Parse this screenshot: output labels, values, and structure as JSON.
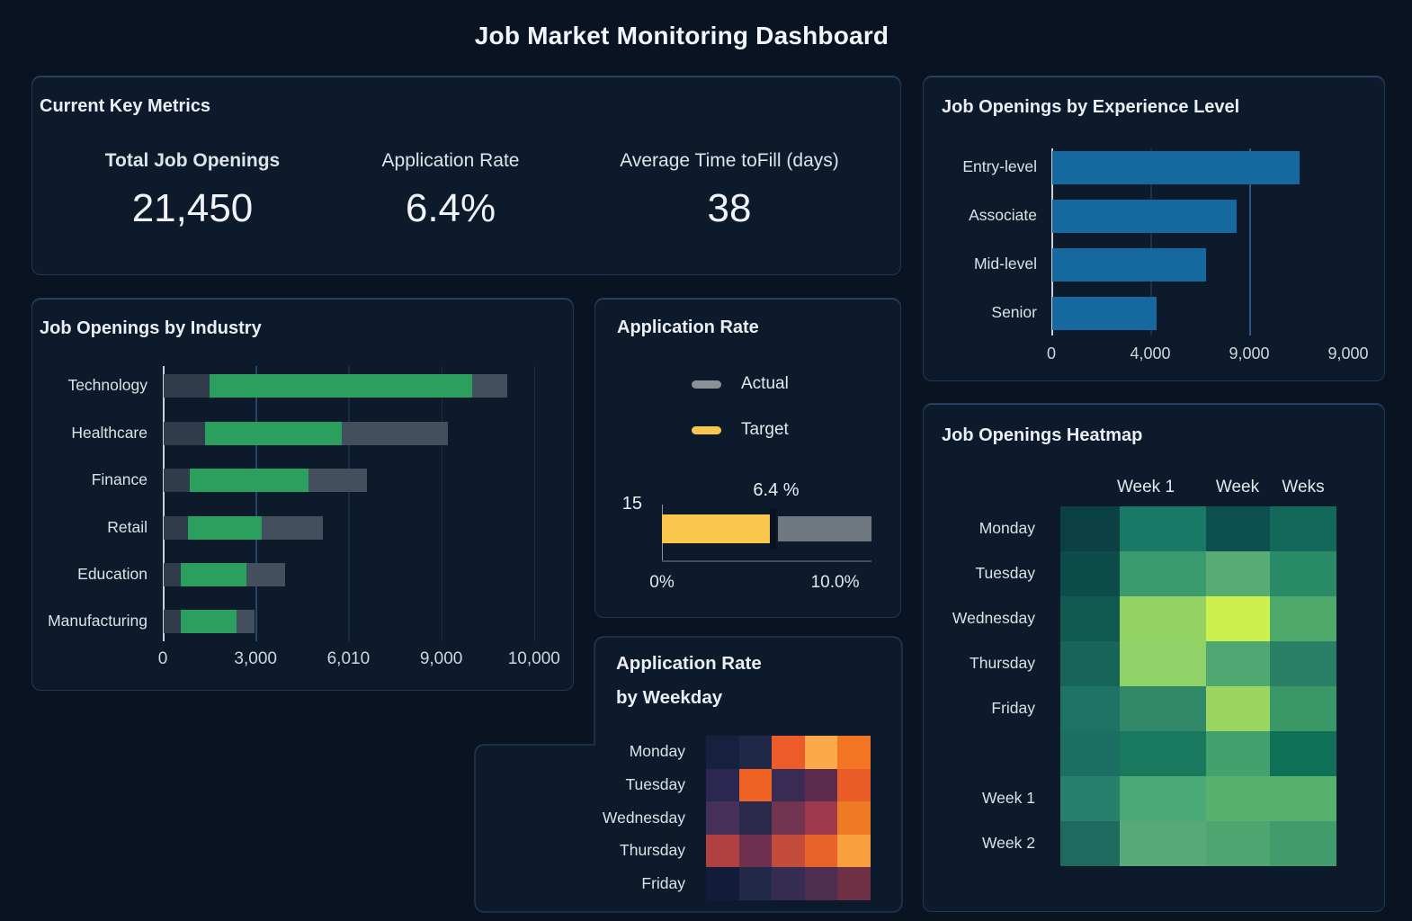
{
  "page": {
    "title": "Job Market Monitoring Dashboard"
  },
  "colors": {
    "page_bg": "#0a1322",
    "panel_bg": "#0d1a2b",
    "panel_border": "#223754",
    "blue_bar": "#16699e",
    "green_bar": "#2b9f5d",
    "target_yellow": "#f8c74c",
    "actual_gray": "#6f7880"
  },
  "key_metrics": {
    "title": "Current Key Metrics",
    "metrics": [
      {
        "label": "Total Job Openings",
        "value": "21,450"
      },
      {
        "label": "Application Rate",
        "value": "6.4%"
      },
      {
        "label": "Average Time toFill (days)",
        "value": "38"
      }
    ]
  },
  "chart_data": [
    {
      "id": "experience",
      "type": "bar",
      "orientation": "horizontal",
      "title": "Job Openings by Experience Level",
      "categories": [
        "Entry-level",
        "Associate",
        "Mid-level",
        "Senior"
      ],
      "values": [
        9000,
        6700,
        5600,
        3800
      ],
      "xticks": [
        "0",
        "4,000",
        "9,000",
        "9,000"
      ],
      "xlim": [
        0,
        11500
      ],
      "bar_color": "#16699e",
      "grid": {
        "vertical_ticks": [
          1,
          2
        ]
      },
      "legend_position": "none"
    },
    {
      "id": "industry",
      "type": "bar",
      "subtype": "range",
      "orientation": "horizontal",
      "title": "Job Openings by Industry",
      "categories": [
        "Technology",
        "Healthcare",
        "Finance",
        "Retail",
        "Education",
        "Manufacturing"
      ],
      "series": [
        {
          "name": "total-track",
          "values": [
            10950,
            9060,
            6500,
            5090,
            3890,
            2915
          ],
          "color_before": "#303c4b",
          "color_after": "#434f5d"
        },
        {
          "name": "highlight-range",
          "starts": [
            1500,
            1340,
            860,
            800,
            570,
            570
          ],
          "ends": [
            9850,
            5700,
            4630,
            3140,
            2660,
            2340
          ],
          "color": "#2b9f5d"
        }
      ],
      "xticks": [
        "0",
        "3,000",
        "6,010",
        "9,000",
        "10,000"
      ],
      "xlim": [
        0,
        12300
      ],
      "grid": {
        "vertical_ticks": [
          1,
          2,
          3,
          4
        ],
        "highlight_tick": 1
      },
      "legend_position": "none"
    },
    {
      "id": "bullet",
      "type": "bar",
      "subtype": "bullet",
      "title": "Application Rate",
      "legend": [
        {
          "label": "Actual",
          "color": "#8a9096"
        },
        {
          "label": "Target",
          "color": "#f8c74c"
        }
      ],
      "legend_position": "top",
      "left_label": "15",
      "value_label": "6.4 %",
      "target": 6.4,
      "actual_end": 12.1,
      "xlim": [
        0,
        12.1
      ],
      "xticks": [
        {
          "label": "0%",
          "value": 0
        },
        {
          "label": "10.0%",
          "value": 10
        }
      ],
      "target_color": "#f8c74c",
      "actual_color": "#6f7880",
      "marker_color": "#0a1220"
    },
    {
      "id": "weekday_heatmap",
      "type": "heatmap",
      "title_lines": [
        "Application Rate",
        "by Weekday"
      ],
      "rows": [
        "Monday",
        "Tuesday",
        "Wednesday",
        "Thursday",
        "Friday"
      ],
      "columns": [
        "",
        "",
        "",
        "",
        ""
      ],
      "values": [
        [
          0.05,
          0.1,
          0.75,
          0.92,
          0.85
        ],
        [
          0.15,
          0.8,
          0.22,
          0.32,
          0.74
        ],
        [
          0.25,
          0.14,
          0.4,
          0.55,
          0.82
        ],
        [
          0.6,
          0.38,
          0.65,
          0.78,
          0.9
        ],
        [
          0.04,
          0.12,
          0.2,
          0.3,
          0.42
        ]
      ],
      "value_scale": "relative intensity 0-1 (no colorbar shown)",
      "cell_colors": [
        [
          "#16203f",
          "#1f2847",
          "#ee5b2b",
          "#fbaa4b",
          "#f37423"
        ],
        [
          "#2b2750",
          "#ef6425",
          "#3a2b55",
          "#5c2c4e",
          "#e95c28"
        ],
        [
          "#45305a",
          "#2b2a4d",
          "#723450",
          "#9d3a4b",
          "#ef7a26"
        ],
        [
          "#b23f42",
          "#6e3150",
          "#c24b39",
          "#e8622a",
          "#f89f3e"
        ],
        [
          "#131c3a",
          "#232948",
          "#362b51",
          "#4f2d50",
          "#6f3045"
        ]
      ]
    },
    {
      "id": "openings_heatmap",
      "type": "heatmap",
      "title": "Job Openings Heatmap",
      "columns": [
        "Week 1",
        "Week",
        "Weks"
      ],
      "columns_note": "first cell column has no header",
      "rows": [
        "Monday",
        "Tuesday",
        "Wednesday",
        "Thursday",
        "Friday",
        "",
        "Week 1",
        "Week 2"
      ],
      "values": [
        [
          0.05,
          0.35,
          0.1,
          0.28
        ],
        [
          0.1,
          0.5,
          0.6,
          0.4
        ],
        [
          0.15,
          0.8,
          1.0,
          0.55
        ],
        [
          0.22,
          0.78,
          0.55,
          0.38
        ],
        [
          0.3,
          0.42,
          0.82,
          0.48
        ],
        [
          0.28,
          0.34,
          0.52,
          0.25
        ],
        [
          0.36,
          0.58,
          0.62,
          0.62
        ],
        [
          0.26,
          0.58,
          0.56,
          0.5
        ]
      ],
      "value_scale": "relative intensity 0-1 (no colorbar shown)",
      "cell_colors": [
        [
          "#0b4145",
          "#187a66",
          "#0d4f4e",
          "#12695a"
        ],
        [
          "#0e4c4b",
          "#3b9b70",
          "#57ad74",
          "#2a8b68"
        ],
        [
          "#115a51",
          "#92d363",
          "#cdf04f",
          "#4fa96a"
        ],
        [
          "#176459",
          "#90d268",
          "#4fa871",
          "#2a8066"
        ],
        [
          "#1d7366",
          "#31896a",
          "#9cd55f",
          "#3a9866"
        ],
        [
          "#1c6f63",
          "#18795f",
          "#42a16d",
          "#0e7157"
        ],
        [
          "#26806c",
          "#4aa974",
          "#58b06e",
          "#58b06e"
        ],
        [
          "#1d6b5f",
          "#57a978",
          "#4ea56f",
          "#429b6b"
        ]
      ]
    }
  ]
}
